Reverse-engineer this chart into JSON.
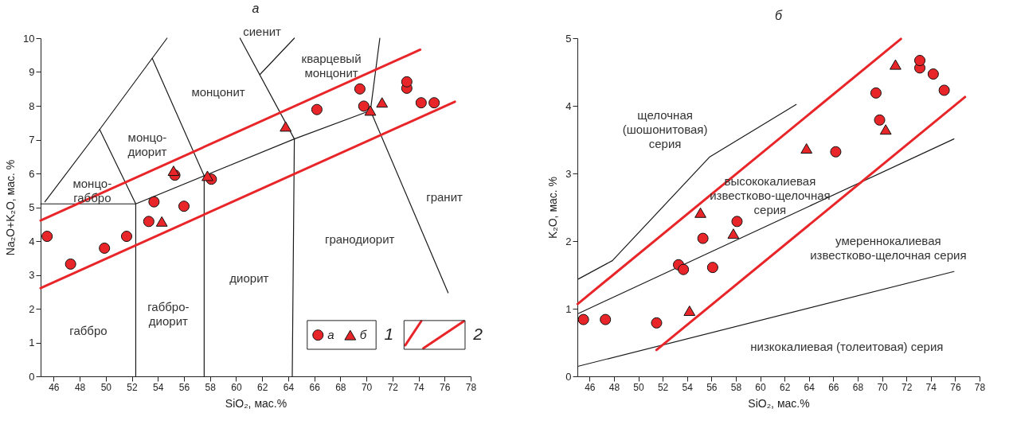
{
  "chart_data": [
    {
      "type": "scatter",
      "title": "а",
      "xlabel": "SiO₂, мас.%",
      "ylabel": "Na₂O+K₂O, мас. %",
      "xlim": [
        45,
        78
      ],
      "ylim": [
        0,
        10
      ],
      "xticks": [
        46,
        48,
        50,
        52,
        54,
        56,
        58,
        60,
        62,
        64,
        66,
        68,
        70,
        72,
        74,
        76,
        78
      ],
      "yticks": [
        0,
        1,
        2,
        3,
        4,
        5,
        6,
        7,
        8,
        9,
        10
      ],
      "grid": false,
      "legend": "bottom right",
      "series": [
        {
          "type": "line",
          "color": "#1a1a1a",
          "x": [
            45,
            52.3,
            52.3
          ],
          "values": [
            5.1,
            5.1,
            0
          ]
        },
        {
          "type": "line",
          "color": "#1a1a1a",
          "x": [
            52.3,
            57.55,
            64.47,
            70.31
          ],
          "values": [
            5.1,
            5.93,
            7.02,
            7.86
          ]
        },
        {
          "type": "line",
          "color": "#1a1a1a",
          "x": [
            57.55,
            57.55
          ],
          "values": [
            0,
            5.93
          ]
        },
        {
          "type": "line",
          "color": "#1a1a1a",
          "x": [
            64.31,
            64.47
          ],
          "values": [
            0,
            7.02
          ]
        },
        {
          "type": "line",
          "color": "#1a1a1a",
          "x": [
            45.33,
            49.53,
            52.3
          ],
          "values": [
            5.16,
            7.3,
            5.1
          ]
        },
        {
          "type": "line",
          "color": "#1a1a1a",
          "x": [
            49.53,
            54.7
          ],
          "values": [
            7.3,
            10
          ]
        },
        {
          "type": "line",
          "color": "#1a1a1a",
          "x": [
            53.57,
            57.55
          ],
          "values": [
            9.4,
            5.93
          ]
        },
        {
          "type": "line",
          "color": "#1a1a1a",
          "x": [
            60.3,
            64.47
          ],
          "values": [
            10,
            7.02
          ]
        },
        {
          "type": "line",
          "color": "#1a1a1a",
          "x": [
            61.84,
            64.47
          ],
          "values": [
            8.93,
            10
          ]
        },
        {
          "type": "line",
          "color": "#1a1a1a",
          "x": [
            71.03,
            70.31,
            76.27
          ],
          "values": [
            10,
            7.86,
            2.47
          ]
        },
        {
          "type": "line",
          "name": "2",
          "color": "#e8262a",
          "x": [
            45,
            74.13
          ],
          "values": [
            4.61,
            9.66
          ]
        },
        {
          "type": "line",
          "color": "#e8262a",
          "x": [
            45,
            76.79
          ],
          "values": [
            2.61,
            8.12
          ]
        },
        {
          "name": "а",
          "marker": "circle",
          "color": "#e8262a",
          "x": [
            45.5,
            47.3,
            49.9,
            51.6,
            53.3,
            53.7,
            56.0,
            55.3,
            58.1,
            66.2,
            69.5,
            69.8,
            73.1,
            73.1,
            74.2,
            75.2
          ],
          "values": [
            4.14,
            3.32,
            3.79,
            4.14,
            4.58,
            5.16,
            5.03,
            5.95,
            5.83,
            7.89,
            8.5,
            7.99,
            8.52,
            8.71,
            8.09,
            8.09
          ]
        },
        {
          "name": "б",
          "marker": "triangle",
          "color": "#e8262a",
          "x": [
            54.3,
            55.2,
            57.8,
            63.8,
            70.3,
            71.2
          ],
          "values": [
            4.58,
            6.08,
            5.93,
            7.39,
            7.86,
            8.1
          ]
        }
      ],
      "annotations": [
        "габбро",
        "габбро-\nдиорит",
        "диорит",
        "гранодиорит",
        "гранит",
        "монцо-\nгаббро",
        "монцо-\nдиорит",
        "монцонит",
        "сиенит",
        "кварцевый\nмонцонит",
        "1"
      ]
    },
    {
      "type": "scatter",
      "title": "б",
      "xlabel": "SiO₂, мас.%",
      "ylabel": "K₂O, мас. %",
      "xlim": [
        45,
        78
      ],
      "ylim": [
        0,
        5
      ],
      "xticks": [
        46,
        48,
        50,
        52,
        54,
        56,
        58,
        60,
        62,
        64,
        66,
        68,
        70,
        72,
        74,
        76,
        78
      ],
      "yticks": [
        0,
        1,
        2,
        3,
        4,
        5
      ],
      "grid": false,
      "series": [
        {
          "type": "line",
          "color": "#1a1a1a",
          "x": [
            45.09,
            47.87,
            55.83,
            62.96
          ],
          "values": [
            1.44,
            1.71,
            3.24,
            4.02
          ]
        },
        {
          "type": "line",
          "color": "#1a1a1a",
          "x": [
            45.09,
            75.9
          ],
          "values": [
            0.93,
            3.51
          ]
        },
        {
          "type": "line",
          "color": "#1a1a1a",
          "x": [
            45.09,
            75.9
          ],
          "values": [
            0.15,
            1.55
          ]
        },
        {
          "type": "line",
          "color": "#e8262a",
          "x": [
            45.02,
            71.55
          ],
          "values": [
            1.07,
            4.99
          ]
        },
        {
          "type": "line",
          "color": "#e8262a",
          "x": [
            51.49,
            76.81
          ],
          "values": [
            0.39,
            4.13
          ]
        },
        {
          "marker": "circle",
          "color": "#e8262a",
          "x": [
            45.5,
            47.3,
            51.5,
            53.3,
            53.7,
            55.3,
            56.1,
            58.1,
            66.2,
            69.5,
            69.8,
            73.1,
            73.1,
            74.2,
            75.1
          ],
          "values": [
            0.84,
            0.84,
            0.79,
            1.65,
            1.58,
            2.04,
            1.61,
            2.29,
            3.32,
            4.19,
            3.79,
            4.56,
            4.67,
            4.47,
            4.23
          ]
        },
        {
          "marker": "triangle",
          "color": "#e8262a",
          "x": [
            54.2,
            55.1,
            57.8,
            63.8,
            70.3,
            71.1
          ],
          "values": [
            0.97,
            2.42,
            2.11,
            3.37,
            3.65,
            4.61
          ]
        }
      ],
      "annotations": [
        "щелочная\n(шошонитовая)\nсерия",
        "высококалиевая\nизвестково-щелочная\nсерия",
        "умереннокалиевая\nизвестково-щелочная серия",
        "низкокалиевая (толеитовая) серия"
      ]
    }
  ]
}
